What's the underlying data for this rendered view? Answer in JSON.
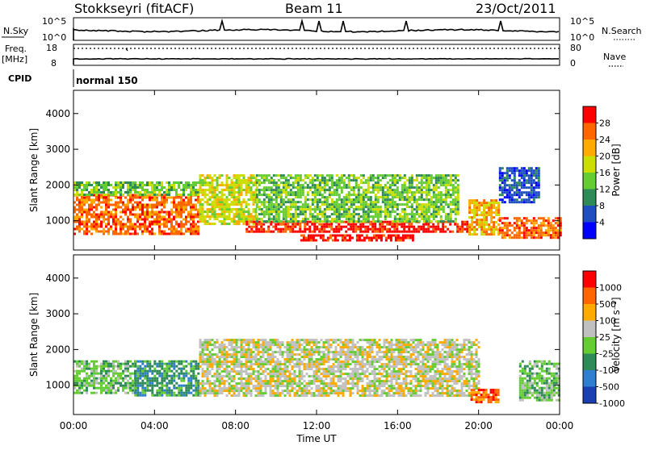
{
  "header": {
    "station": "Stokkseyri (fitACF)",
    "beam": "Beam 11",
    "date": "23/Oct/2011"
  },
  "strip": {
    "nsky_label": "N.Sky",
    "nsearch_label": "N.Search",
    "nsky_ticks": [
      "10^5",
      "10^0"
    ],
    "nsearch_ticks": [
      "10^5",
      "10^0"
    ],
    "freq_label_top": "Freq.",
    "freq_label_bottom": "[MHz]",
    "freq_ticks": [
      "18",
      "8"
    ],
    "nave_label": "Nave",
    "nave_ticks": [
      "80",
      "0"
    ],
    "cpid_label": "CPID",
    "cpid_value": "normal 150"
  },
  "chart_data": [
    {
      "type": "heatmap",
      "name": "power",
      "ylabel": "Slant Range [km]",
      "ylim": [
        180,
        4650
      ],
      "yticks": [
        "1000",
        "2000",
        "3000",
        "4000"
      ],
      "xlim_hours": [
        0,
        24
      ],
      "colorbar": {
        "label": "Power [dB]",
        "ticks": [
          "4",
          "8",
          "12",
          "16",
          "20",
          "24",
          "28"
        ],
        "colors": [
          "#0000ff",
          "#1f4fbf",
          "#2e8b57",
          "#66cc33",
          "#ccdd00",
          "#ffaa00",
          "#ff6600",
          "#ff0000"
        ]
      },
      "echo_bands": [
        {
          "t0": 0.0,
          "t1": 6.2,
          "rmin": 650,
          "rmax": 1750,
          "level": 6
        },
        {
          "t0": 0.0,
          "t1": 6.2,
          "rmin": 1750,
          "rmax": 2100,
          "level": 3
        },
        {
          "t0": 6.2,
          "t1": 9.0,
          "rmin": 900,
          "rmax": 2300,
          "level": 4
        },
        {
          "t0": 8.5,
          "t1": 19.5,
          "rmin": 700,
          "rmax": 1000,
          "level": 7
        },
        {
          "t0": 11.2,
          "t1": 16.8,
          "rmin": 450,
          "rmax": 620,
          "level": 7
        },
        {
          "t0": 9.0,
          "t1": 19.0,
          "rmin": 1000,
          "rmax": 2300,
          "level": 3
        },
        {
          "t0": 19.5,
          "t1": 21.0,
          "rmin": 600,
          "rmax": 1600,
          "level": 5
        },
        {
          "t0": 21.0,
          "t1": 24.0,
          "rmin": 500,
          "rmax": 1100,
          "level": 6
        },
        {
          "t0": 21.0,
          "t1": 23.0,
          "rmin": 1500,
          "rmax": 2500,
          "level": 1
        }
      ]
    },
    {
      "type": "heatmap",
      "name": "velocity",
      "ylabel": "Slant Range [km]",
      "ylim": [
        180,
        4650
      ],
      "yticks": [
        "1000",
        "2000",
        "3000",
        "4000"
      ],
      "xlabel": "Time UT",
      "xticks": [
        "00:00",
        "04:00",
        "08:00",
        "12:00",
        "16:00",
        "20:00",
        "00:00"
      ],
      "xlim_hours": [
        0,
        24
      ],
      "colorbar": {
        "label": "Velocity [m s⁻¹]",
        "ticks": [
          "1000",
          "500",
          "100",
          "25",
          "-25",
          "-100",
          "-500",
          "-1000"
        ],
        "colors": [
          "#1a3fb0",
          "#2e7fd0",
          "#2e8b57",
          "#66cc33",
          "#c0c0c0",
          "#ffaa00",
          "#ff6600",
          "#ff0000"
        ]
      },
      "echo_bands": [
        {
          "t0": 0.0,
          "t1": 3.0,
          "rmin": 800,
          "rmax": 1700,
          "level": 3
        },
        {
          "t0": 3.0,
          "t1": 6.2,
          "rmin": 700,
          "rmax": 1700,
          "level": 2
        },
        {
          "t0": 6.2,
          "t1": 20.0,
          "rmin": 700,
          "rmax": 2300,
          "level": 4
        },
        {
          "t0": 19.6,
          "t1": 21.0,
          "rmin": 500,
          "rmax": 900,
          "level": 6
        },
        {
          "t0": 22.0,
          "t1": 24.0,
          "rmin": 600,
          "rmax": 1700,
          "level": 3
        }
      ]
    }
  ],
  "colors": {
    "axis": "#000000",
    "background": "#ffffff"
  }
}
